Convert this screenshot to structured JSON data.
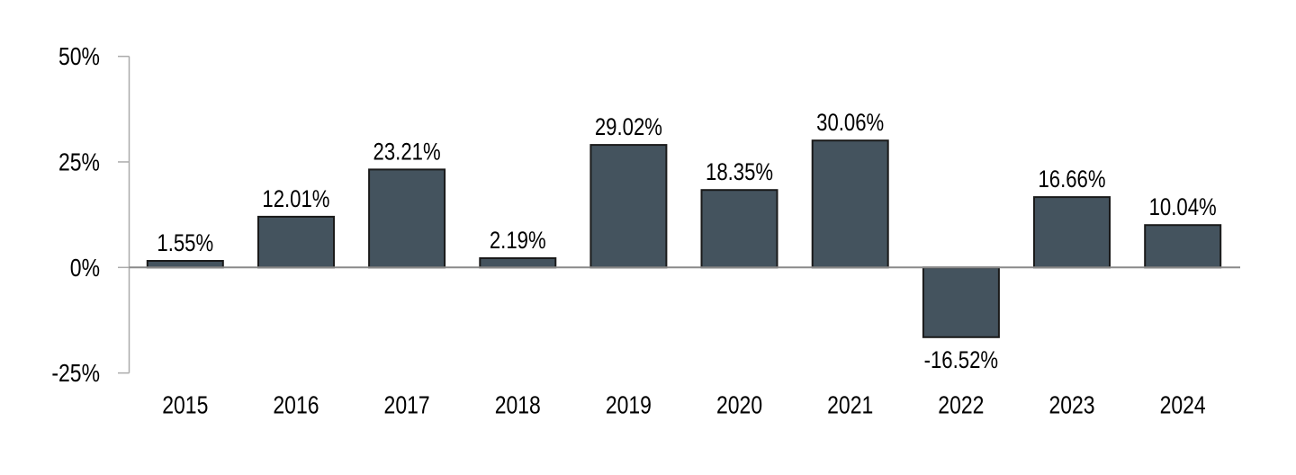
{
  "chart_data": {
    "type": "bar",
    "title": "",
    "xlabel": "",
    "ylabel": "",
    "categories": [
      "2015",
      "2016",
      "2017",
      "2018",
      "2019",
      "2020",
      "2021",
      "2022",
      "2023",
      "2024"
    ],
    "values": [
      1.55,
      12.01,
      23.21,
      2.19,
      29.02,
      18.35,
      30.06,
      -16.52,
      16.66,
      10.04
    ],
    "data_labels": [
      "1.55%",
      "12.01%",
      "23.21%",
      "2.19%",
      "29.02%",
      "18.35%",
      "30.06%",
      "-16.52%",
      "16.66%",
      "10.04%"
    ],
    "ylim": [
      -25,
      50
    ],
    "yticks": [
      {
        "value": 50,
        "label": "50%"
      },
      {
        "value": 25,
        "label": "25%"
      },
      {
        "value": 0,
        "label": "0%"
      },
      {
        "value": -25,
        "label": "-25%"
      }
    ],
    "grid": false,
    "legend": false,
    "colors": {
      "bar_fill": "#44535E",
      "bar_border": "#1A1A1A",
      "axis_line": "#ABABAB",
      "zero_line": "#8A8A8A",
      "label_text": "#000000",
      "background": "#FFFFFF"
    }
  }
}
